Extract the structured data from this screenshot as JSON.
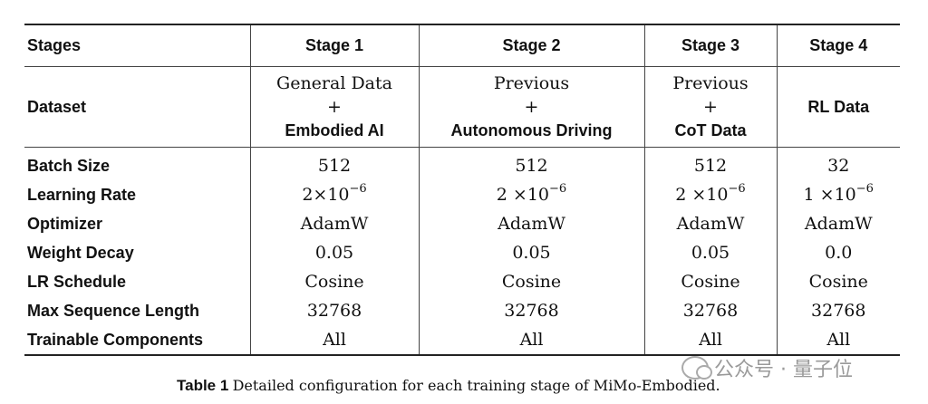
{
  "table": {
    "header": [
      "Stages",
      "Stage 1",
      "Stage 2",
      "Stage 3",
      "Stage 4"
    ],
    "dataset": {
      "label": "Dataset",
      "plus": "+",
      "stage1": {
        "line1": "General Data",
        "line2": "Embodied AI"
      },
      "stage2": {
        "line1": "Previous",
        "line2": "Autonomous Driving"
      },
      "stage3": {
        "line1": "Previous",
        "line2": "CoT Data"
      },
      "stage4": "RL Data"
    },
    "rows": [
      {
        "label": "Batch Size",
        "values": [
          "512",
          "512",
          "512",
          "32"
        ]
      },
      {
        "label": "Learning Rate",
        "values": [
          {
            "base": "2×10",
            "exp": "−6"
          },
          {
            "base": "2 ×10",
            "exp": "−6"
          },
          {
            "base": "2 ×10",
            "exp": "−6"
          },
          {
            "base": "1 ×10",
            "exp": "−6"
          }
        ]
      },
      {
        "label": "Optimizer",
        "values": [
          "AdamW",
          "AdamW",
          "AdamW",
          "AdamW"
        ]
      },
      {
        "label": "Weight Decay",
        "values": [
          "0.05",
          "0.05",
          "0.05",
          "0.0"
        ]
      },
      {
        "label": "LR Schedule",
        "values": [
          "Cosine",
          "Cosine",
          "Cosine",
          "Cosine"
        ]
      },
      {
        "label": "Max Sequence Length",
        "values": [
          "32768",
          "32768",
          "32768",
          "32768"
        ]
      },
      {
        "label": "Trainable Components",
        "values": [
          "All",
          "All",
          "All",
          "All"
        ]
      }
    ]
  },
  "caption": {
    "label": "Table 1",
    "text": "Detailed configuration for each training stage of MiMo-Embodied."
  },
  "watermark": {
    "text": "公众号 · 量子位",
    "icon": "wechat-icon"
  }
}
